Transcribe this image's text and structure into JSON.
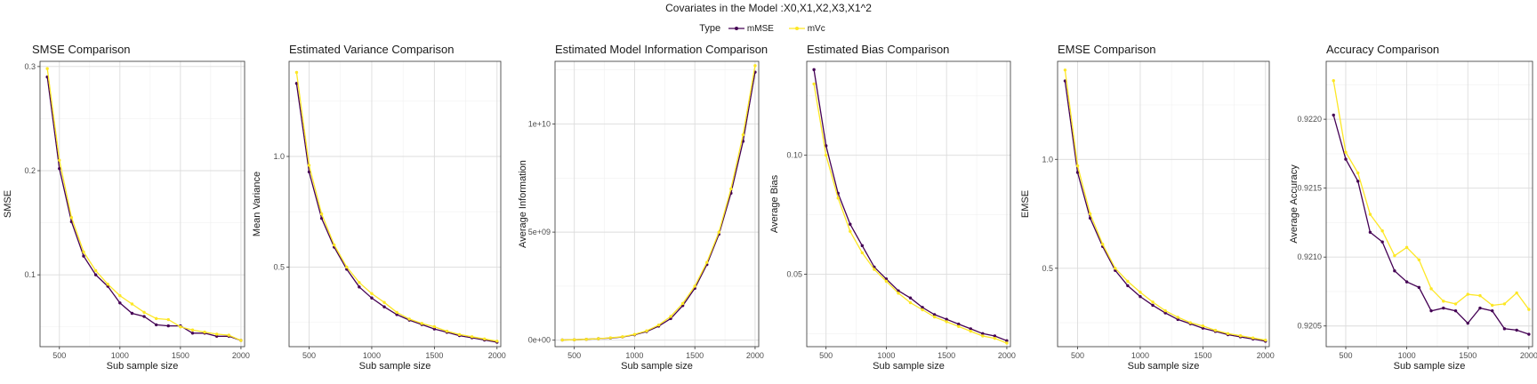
{
  "header": {
    "title": "Covariates in the Model :X0,X1,X2,X3,X1^2",
    "legend_title": "Type",
    "legend_items": [
      {
        "label": "mMSE",
        "color": "#440154"
      },
      {
        "label": "mVc",
        "color": "#FDE725"
      }
    ]
  },
  "chart_data": [
    {
      "type": "line",
      "title": "SMSE Comparison",
      "xlabel": "Sub sample size",
      "ylabel": "SMSE",
      "xlim": [
        340,
        2030
      ],
      "ylim": [
        0.031,
        0.305
      ],
      "x_ticks": [
        500,
        1000,
        1500,
        2000
      ],
      "x_tick_labels": [
        "500",
        "1000",
        "1500",
        "2000"
      ],
      "y_ticks": [
        0.1,
        0.2,
        0.3
      ],
      "y_tick_labels": [
        "0.1",
        "0.2",
        "0.3"
      ],
      "x": [
        400,
        500,
        600,
        700,
        800,
        900,
        1000,
        1100,
        1200,
        1300,
        1400,
        1500,
        1600,
        1700,
        1800,
        1900,
        2000
      ],
      "series": [
        {
          "name": "mMSE",
          "color": "#440154",
          "values": [
            0.29,
            0.202,
            0.151,
            0.118,
            0.1,
            0.089,
            0.073,
            0.063,
            0.06,
            0.052,
            0.051,
            0.051,
            0.044,
            0.044,
            0.041,
            0.041,
            0.037
          ]
        },
        {
          "name": "mVc",
          "color": "#FDE725",
          "values": [
            0.298,
            0.21,
            0.155,
            0.122,
            0.104,
            0.091,
            0.08,
            0.072,
            0.064,
            0.058,
            0.057,
            0.05,
            0.047,
            0.045,
            0.043,
            0.042,
            0.037
          ]
        }
      ]
    },
    {
      "type": "line",
      "title": "Estimated Variance Comparison",
      "xlabel": "Sub sample size",
      "ylabel": "Mean Variance",
      "xlim": [
        340,
        2030
      ],
      "ylim": [
        0.14,
        1.43
      ],
      "x_ticks": [
        500,
        1000,
        1500,
        2000
      ],
      "x_tick_labels": [
        "500",
        "1000",
        "1500",
        "2000"
      ],
      "y_ticks": [
        0.5,
        1.0
      ],
      "y_tick_labels": [
        "0.5",
        "1.0"
      ],
      "x": [
        400,
        500,
        600,
        700,
        800,
        900,
        1000,
        1100,
        1200,
        1300,
        1400,
        1500,
        1600,
        1700,
        1800,
        1900,
        2000
      ],
      "series": [
        {
          "name": "mMSE",
          "color": "#440154",
          "values": [
            1.33,
            0.93,
            0.72,
            0.59,
            0.49,
            0.41,
            0.36,
            0.32,
            0.285,
            0.26,
            0.24,
            0.22,
            0.205,
            0.19,
            0.18,
            0.17,
            0.16
          ]
        },
        {
          "name": "mVc",
          "color": "#FDE725",
          "values": [
            1.38,
            0.96,
            0.74,
            0.6,
            0.5,
            0.43,
            0.38,
            0.34,
            0.295,
            0.265,
            0.245,
            0.23,
            0.21,
            0.195,
            0.185,
            0.175,
            0.165
          ]
        }
      ]
    },
    {
      "type": "line",
      "title": "Estimated Model Information Comparison",
      "xlabel": "Sub sample size",
      "ylabel": "Average Information",
      "xlim": [
        340,
        2030
      ],
      "ylim": [
        -300000000,
        12900000000
      ],
      "x_ticks": [
        500,
        1000,
        1500,
        2000
      ],
      "x_tick_labels": [
        "500",
        "1000",
        "1500",
        "2000"
      ],
      "y_ticks": [
        0,
        5000000000,
        10000000000
      ],
      "y_tick_labels": [
        "0e+00",
        "5e+09",
        "1e+10"
      ],
      "x": [
        400,
        500,
        600,
        700,
        800,
        900,
        1000,
        1100,
        1200,
        1300,
        1400,
        1500,
        1600,
        1700,
        1800,
        1900,
        2000
      ],
      "series": [
        {
          "name": "mMSE",
          "color": "#440154",
          "values": [
            10000000,
            20000000,
            40000000,
            70000000,
            100000000,
            150000000,
            250000000,
            400000000,
            650000000,
            1000000000,
            1600000000,
            2400000000,
            3500000000,
            4900000000,
            6800000000,
            9200000000,
            12400000000
          ]
        },
        {
          "name": "mVc",
          "color": "#FDE725",
          "values": [
            10000000,
            20000000,
            40000000,
            70000000,
            110000000,
            160000000,
            270000000,
            430000000,
            700000000,
            1100000000,
            1700000000,
            2500000000,
            3600000000,
            5000000000,
            7000000000,
            9500000000,
            12700000000
          ]
        }
      ]
    },
    {
      "type": "line",
      "title": "Estimated Bias Comparison",
      "xlabel": "Sub sample size",
      "ylabel": "Average Bias",
      "xlim": [
        340,
        2030
      ],
      "ylim": [
        0.0195,
        0.1395
      ],
      "x_ticks": [
        500,
        1000,
        1500,
        2000
      ],
      "x_tick_labels": [
        "500",
        "1000",
        "1500",
        "2000"
      ],
      "y_ticks": [
        0.05,
        0.1
      ],
      "y_tick_labels": [
        "0.05",
        "0.10"
      ],
      "x": [
        400,
        500,
        600,
        700,
        800,
        900,
        1000,
        1100,
        1200,
        1300,
        1400,
        1500,
        1600,
        1700,
        1800,
        1900,
        2000
      ],
      "series": [
        {
          "name": "mMSE",
          "color": "#440154",
          "values": [
            0.136,
            0.104,
            0.084,
            0.071,
            0.062,
            0.053,
            0.048,
            0.043,
            0.04,
            0.036,
            0.033,
            0.031,
            0.029,
            0.027,
            0.025,
            0.024,
            0.022
          ]
        },
        {
          "name": "mVc",
          "color": "#FDE725",
          "values": [
            0.13,
            0.1,
            0.082,
            0.068,
            0.059,
            0.052,
            0.047,
            0.042,
            0.038,
            0.035,
            0.032,
            0.03,
            0.028,
            0.026,
            0.024,
            0.023,
            0.021
          ]
        }
      ]
    },
    {
      "type": "line",
      "title": "EMSE Comparison",
      "xlabel": "Sub sample size",
      "ylabel": "EMSE",
      "xlim": [
        340,
        2030
      ],
      "ylim": [
        0.14,
        1.45
      ],
      "x_ticks": [
        500,
        1000,
        1500,
        2000
      ],
      "x_tick_labels": [
        "500",
        "1000",
        "1500",
        "2000"
      ],
      "y_ticks": [
        0.5,
        1.0
      ],
      "y_tick_labels": [
        "0.5",
        "1.0"
      ],
      "x": [
        400,
        500,
        600,
        700,
        800,
        900,
        1000,
        1100,
        1200,
        1300,
        1400,
        1500,
        1600,
        1700,
        1800,
        1900,
        2000
      ],
      "series": [
        {
          "name": "mMSE",
          "color": "#440154",
          "values": [
            1.36,
            0.94,
            0.73,
            0.6,
            0.49,
            0.42,
            0.37,
            0.33,
            0.295,
            0.265,
            0.245,
            0.225,
            0.21,
            0.195,
            0.185,
            0.175,
            0.165
          ]
        },
        {
          "name": "mVc",
          "color": "#FDE725",
          "values": [
            1.41,
            0.97,
            0.75,
            0.61,
            0.5,
            0.44,
            0.39,
            0.345,
            0.305,
            0.275,
            0.25,
            0.235,
            0.215,
            0.2,
            0.19,
            0.18,
            0.17
          ]
        }
      ]
    },
    {
      "type": "line",
      "title": "Accuracy Comparison",
      "xlabel": "Sub sample size",
      "ylabel": "Average Accuracy",
      "xlim": [
        340,
        2030
      ],
      "ylim": [
        0.92035,
        0.92242
      ],
      "x_ticks": [
        500,
        1000,
        1500,
        2000
      ],
      "x_tick_labels": [
        "500",
        "1000",
        "1500",
        "2000"
      ],
      "y_ticks": [
        0.9205,
        0.921,
        0.9215,
        0.922
      ],
      "y_tick_labels": [
        "0.9205",
        "0.9210",
        "0.9215",
        "0.9220"
      ],
      "x": [
        400,
        500,
        600,
        700,
        800,
        900,
        1000,
        1100,
        1200,
        1300,
        1400,
        1500,
        1600,
        1700,
        1800,
        1900,
        2000
      ],
      "series": [
        {
          "name": "mMSE",
          "color": "#440154",
          "values": [
            0.92203,
            0.92171,
            0.92155,
            0.92118,
            0.92111,
            0.9209,
            0.92082,
            0.92078,
            0.92061,
            0.92063,
            0.92061,
            0.92052,
            0.92063,
            0.92061,
            0.92048,
            0.92047,
            0.92044
          ]
        },
        {
          "name": "mVc",
          "color": "#FDE725",
          "values": [
            0.92228,
            0.92176,
            0.92161,
            0.92131,
            0.92119,
            0.92101,
            0.92107,
            0.92098,
            0.92077,
            0.92068,
            0.92066,
            0.92073,
            0.92072,
            0.92065,
            0.92066,
            0.92074,
            0.92062
          ]
        }
      ]
    }
  ]
}
